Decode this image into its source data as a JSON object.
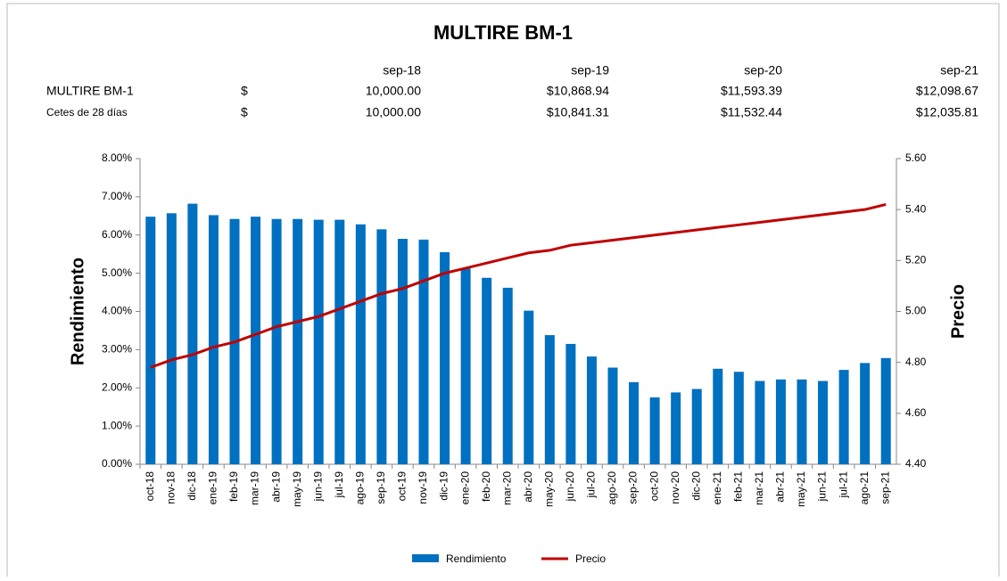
{
  "chart_data": {
    "type": "bar_line",
    "title": "MULTIRE BM-1",
    "categories": [
      "oct-18",
      "nov-18",
      "dic-18",
      "ene-19",
      "feb-19",
      "mar-19",
      "abr-19",
      "may-19",
      "jun-19",
      "jul-19",
      "ago-19",
      "sep-19",
      "oct-19",
      "nov-19",
      "dic-19",
      "ene-20",
      "feb-20",
      "mar-20",
      "abr-20",
      "may-20",
      "jun-20",
      "jul-20",
      "ago-20",
      "sep-20",
      "oct-20",
      "nov-20",
      "dic-20",
      "ene-21",
      "feb-21",
      "mar-21",
      "abr-21",
      "may-21",
      "jun-21",
      "jul-21",
      "ago-21",
      "sep-21"
    ],
    "series": [
      {
        "name": "Rendimiento",
        "color": "#0070c0",
        "kind": "bar",
        "values": [
          6.48,
          6.57,
          6.82,
          6.52,
          6.42,
          6.48,
          6.42,
          6.42,
          6.4,
          6.4,
          6.28,
          6.15,
          5.9,
          5.88,
          5.55,
          5.12,
          4.88,
          4.62,
          4.02,
          3.38,
          3.15,
          2.82,
          2.53,
          2.15,
          1.75,
          1.88,
          1.97,
          2.5,
          2.42,
          2.18,
          2.22,
          2.22,
          2.18,
          2.47,
          2.65,
          2.78
        ]
      },
      {
        "name": "Precio",
        "color": "#c00000",
        "kind": "line",
        "axis": "y2",
        "values": [
          4.78,
          4.81,
          4.83,
          4.86,
          4.88,
          4.91,
          4.94,
          4.96,
          4.98,
          5.01,
          5.04,
          5.07,
          5.09,
          5.12,
          5.15,
          5.17,
          5.19,
          5.21,
          5.23,
          5.24,
          5.26,
          5.27,
          5.28,
          5.29,
          5.3,
          5.31,
          5.32,
          5.33,
          5.34,
          5.35,
          5.36,
          5.37,
          5.38,
          5.39,
          5.4,
          5.42
        ]
      }
    ],
    "ylabel": "Rendimiento",
    "y2label": "Precio",
    "ylim": [
      0,
      8
    ],
    "yticks": [
      {
        "value": 0,
        "label": "0.00%"
      },
      {
        "value": 1,
        "label": "1.00%"
      },
      {
        "value": 2,
        "label": "2.00%"
      },
      {
        "value": 3,
        "label": "3.00%"
      },
      {
        "value": 4,
        "label": "4.00%"
      },
      {
        "value": 5,
        "label": "5.00%"
      },
      {
        "value": 6,
        "label": "6.00%"
      },
      {
        "value": 7,
        "label": "7.00%"
      },
      {
        "value": 8,
        "label": "8.00%"
      }
    ],
    "y2lim": [
      4.4,
      5.6
    ],
    "y2ticks": [
      {
        "value": 4.4,
        "label": "4.40"
      },
      {
        "value": 4.6,
        "label": "4.60"
      },
      {
        "value": 4.8,
        "label": "4.80"
      },
      {
        "value": 5.0,
        "label": "5.00"
      },
      {
        "value": 5.2,
        "label": "5.20"
      },
      {
        "value": 5.4,
        "label": "5.40"
      },
      {
        "value": 5.6,
        "label": "5.60"
      }
    ],
    "legend": "bottom"
  },
  "table": {
    "header": [
      "sep-18",
      "sep-19",
      "sep-20",
      "sep-21"
    ],
    "rows": [
      [
        "MULTIRE BM-1",
        "$",
        "10,000.00",
        "$10,868.94",
        "$11,593.39",
        "$12,098.67"
      ],
      [
        "Cetes de 28 días",
        "$",
        "10,000.00",
        "$10,841.31",
        "$11,532.44",
        "$12,035.81"
      ]
    ]
  }
}
